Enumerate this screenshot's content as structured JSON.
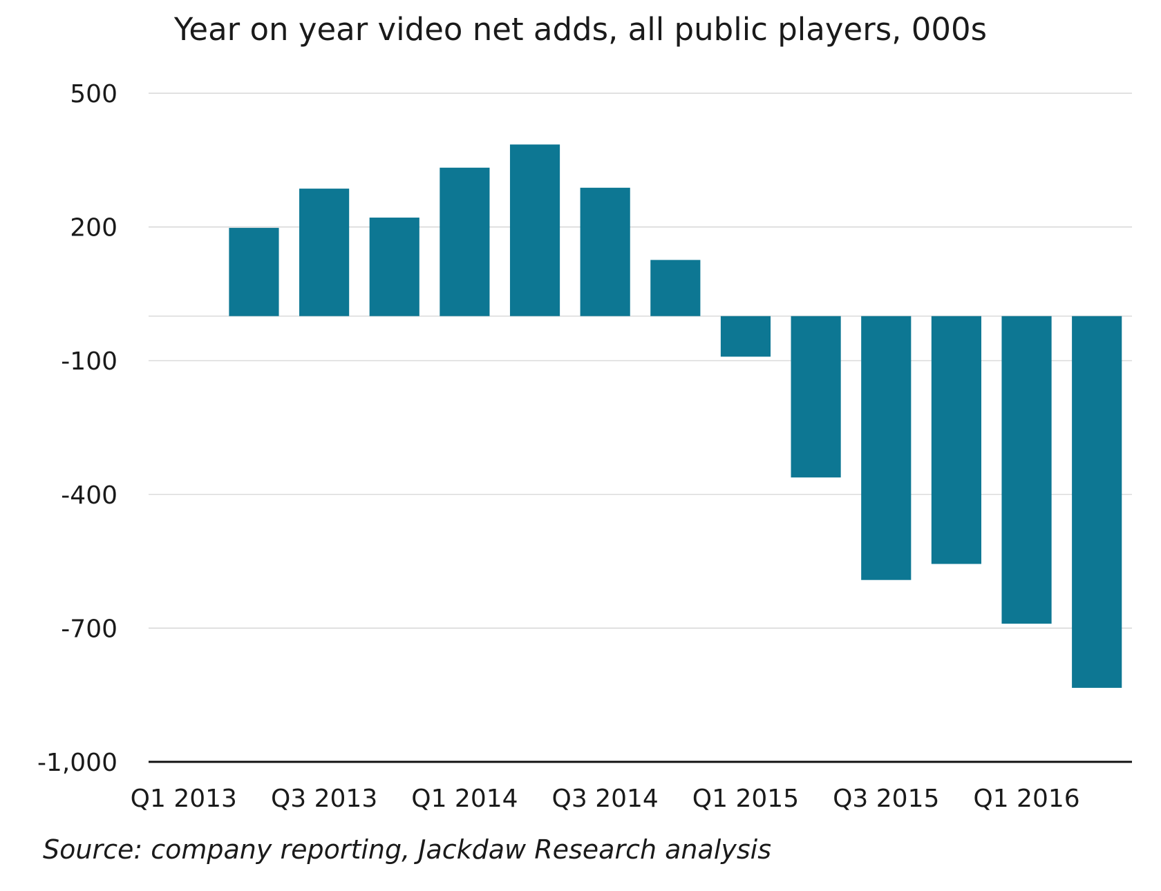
{
  "chart_data": {
    "type": "bar",
    "title": "Year on year video net adds, all public players, 000s",
    "categories": [
      "Q1 2013",
      "Q2 2013",
      "Q3 2013",
      "Q4 2013",
      "Q1 2014",
      "Q2 2014",
      "Q3 2014",
      "Q4 2014",
      "Q1 2015",
      "Q2 2015",
      "Q3 2015",
      "Q4 2015",
      "Q1 2016",
      "Q2 2016"
    ],
    "x_tick_labels": [
      "Q1 2013",
      "Q3 2013",
      "Q1 2014",
      "Q3 2014",
      "Q1 2015",
      "Q3 2015",
      "Q1 2016"
    ],
    "series": [
      {
        "values": [
          null,
          198,
          286,
          221,
          333,
          385,
          288,
          126,
          -91,
          -362,
          -592,
          -556,
          -690,
          -834
        ]
      }
    ],
    "yticks": [
      500,
      200,
      -100,
      -400,
      -700,
      -1000
    ],
    "ytick_labels": [
      "500",
      "200",
      "-100",
      "-400",
      "-700",
      "-1,000"
    ],
    "ylim": [
      -1000,
      500
    ],
    "grid": true,
    "bar_color": "#0d7793",
    "xlabel": "",
    "ylabel": "",
    "source": "Source: company reporting, Jackdaw Research analysis"
  }
}
